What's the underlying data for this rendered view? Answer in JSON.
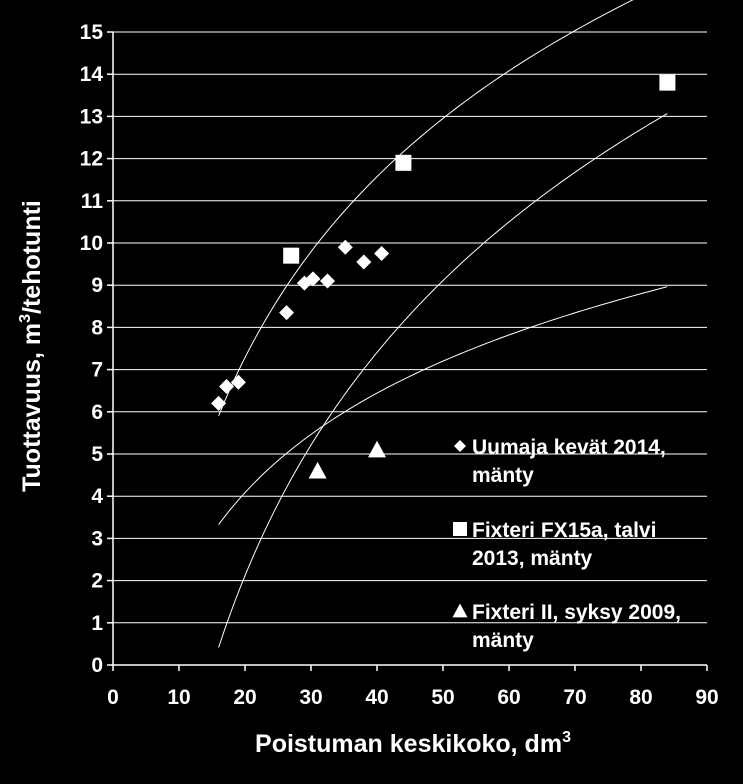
{
  "chart_data": {
    "type": "scatter",
    "xlabel": "Poistuman keskikoko, dm",
    "xlabel_sup": "3",
    "ylabel": "Tuottavuus, m",
    "ylabel_sup": "3",
    "ylabel_suffix": "/tehotunti",
    "xlim": [
      0,
      90
    ],
    "ylim": [
      0,
      15
    ],
    "x_ticks": [
      "0",
      "10",
      "20",
      "30",
      "40",
      "50",
      "60",
      "70",
      "80",
      "90"
    ],
    "y_ticks": [
      "0",
      "1",
      "2",
      "3",
      "4",
      "5",
      "6",
      "7",
      "8",
      "9",
      "10",
      "11",
      "12",
      "13",
      "14",
      "15"
    ],
    "grid": "horizontal",
    "legend_position": "right",
    "series": [
      {
        "name_lines": [
          "Uumaja kevät 2014,",
          "mänty"
        ],
        "marker": "diamond",
        "color": "#ffffff",
        "points": [
          [
            16,
            6.2
          ],
          [
            17.2,
            6.6
          ],
          [
            19,
            6.7
          ],
          [
            26.3,
            8.35
          ],
          [
            29,
            9.05
          ],
          [
            30.3,
            9.15
          ],
          [
            32.5,
            9.1
          ],
          [
            35.2,
            9.9
          ],
          [
            38,
            9.55
          ],
          [
            40.7,
            9.75
          ]
        ]
      },
      {
        "name_lines": [
          "Fixteri FX15a, talvi",
          "2013, mänty"
        ],
        "marker": "square",
        "color": "#ffffff",
        "points": [
          [
            27,
            9.7
          ],
          [
            44,
            11.9
          ],
          [
            84,
            13.8
          ]
        ]
      },
      {
        "name_lines": [
          "Fixteri II, syksy 2009,",
          "mänty"
        ],
        "marker": "triangle",
        "color": "#ffffff",
        "points": [
          [
            31,
            4.6
          ],
          [
            40,
            5.1
          ]
        ]
      }
    ],
    "trendlines": [
      {
        "type": "log",
        "a": 6.184,
        "b": -11.24,
        "x_range": [
          16,
          84
        ]
      },
      {
        "type": "log",
        "a": 7.63,
        "b": -20.74,
        "x_range": [
          16,
          84
        ]
      },
      {
        "type": "log",
        "a": 3.4,
        "b": -6.1,
        "x_range": [
          16,
          84
        ]
      }
    ]
  }
}
